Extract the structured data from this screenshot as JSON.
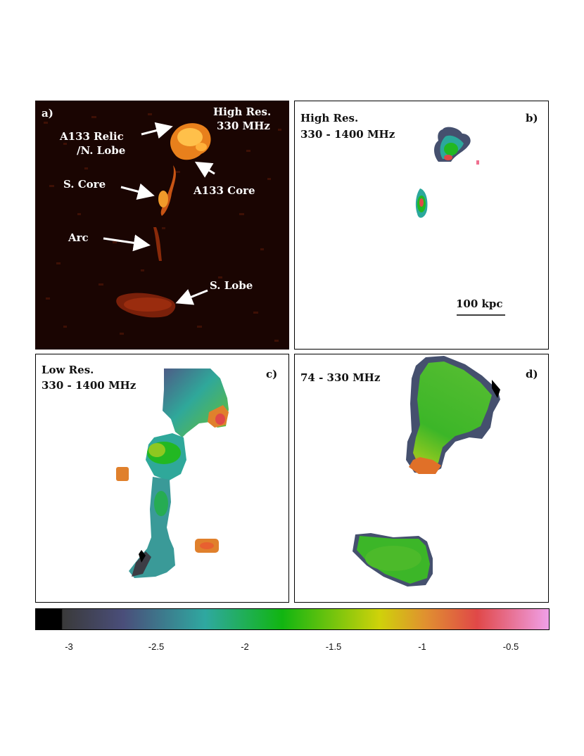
{
  "panels": {
    "a": {
      "tag": "a)",
      "title_line1": "High Res.",
      "title_line2": "330 MHz",
      "labels": {
        "relic_line1": "A133 Relic",
        "relic_line2": "/N. Lobe",
        "core": "A133 Core",
        "s_core": "S. Core",
        "arc": "Arc",
        "s_lobe": "S. Lobe"
      }
    },
    "b": {
      "tag": "b)",
      "title_line1": "High Res.",
      "title_line2": "330 - 1400 MHz",
      "scale_label": "100 kpc"
    },
    "c": {
      "tag": "c)",
      "title_line1": "Low Res.",
      "title_line2": "330 - 1400 MHz"
    },
    "d": {
      "tag": "d)",
      "title_line1": "74 - 330 MHz"
    }
  },
  "colorbar": {
    "ticks": [
      "-3",
      "-2.5",
      "-2",
      "-1.5",
      "-1",
      "-0.5"
    ],
    "colors": [
      "#000000",
      "#3a3a3a",
      "#4a4e7a",
      "#2fa8a0",
      "#11b511",
      "#cfd20a",
      "#e09030",
      "#e04848",
      "#f0a0e8"
    ]
  }
}
